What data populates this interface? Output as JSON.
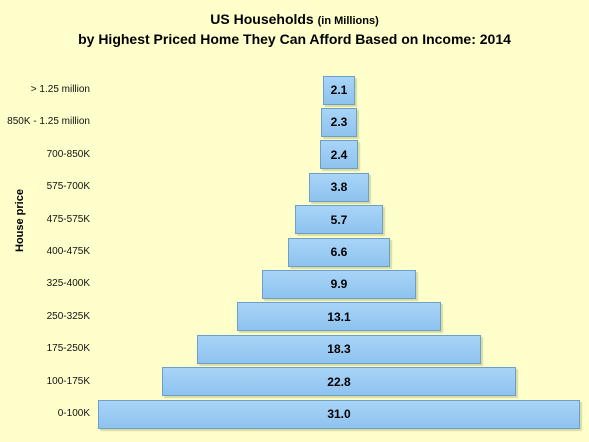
{
  "chart_data": {
    "type": "bar",
    "orientation": "horizontal-centered",
    "title_main": "US Households",
    "title_unit": "(in Millions)",
    "title_line2": "by Highest Priced Home They Can Afford Based on Income: 2014",
    "ylabel": "House price",
    "categories": [
      "> 1.25 million",
      "850K - 1.25 million",
      "700-850K",
      "575-700K",
      "475-575K",
      "400-475K",
      "325-400K",
      "250-325K",
      "175-250K",
      "100-175K",
      "0-100K"
    ],
    "values": [
      2.1,
      2.3,
      2.4,
      3.8,
      5.7,
      6.6,
      9.9,
      13.1,
      18.3,
      22.8,
      31.0
    ],
    "value_labels": [
      "2.1",
      "2.3",
      "2.4",
      "3.8",
      "5.7",
      "6.6",
      "9.9",
      "13.1",
      "18.3",
      "22.8",
      "31.0"
    ],
    "colors": {
      "bar_fill": "#9ccbf3",
      "bar_border": "#6e9fc9",
      "background": "#ffffcc"
    },
    "grid": false,
    "legend": "none"
  }
}
